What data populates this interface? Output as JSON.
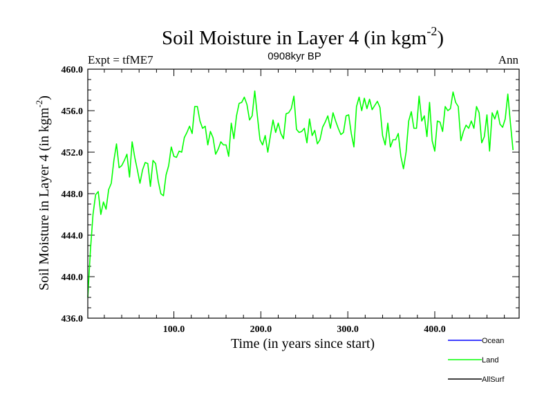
{
  "chart_data": {
    "type": "line",
    "title": "Soil Moisture in Layer 4 (in kgm",
    "title_sup": "-2",
    "title_close": ")",
    "subtitle": "0908kyr BP",
    "left_label": "Expt = tfME7",
    "right_label": "Ann",
    "xlabel": "Time (in years since start)",
    "ylabel": "Soil Moisture in Layer 4 (in kgm",
    "ylabel_sup": "-2",
    "ylabel_close": ")",
    "xlim": [
      1,
      497
    ],
    "ylim": [
      436,
      460
    ],
    "x_ticks": [
      100,
      200,
      300,
      400
    ],
    "x_tick_labels": [
      "100.0",
      "200.0",
      "300.0",
      "400.0"
    ],
    "y_ticks": [
      436,
      440,
      444,
      448,
      452,
      456,
      460
    ],
    "y_tick_labels": [
      "436.0",
      "440.0",
      "444.0",
      "448.0",
      "452.0",
      "456.0",
      "460.0"
    ],
    "series": [
      {
        "name": "Ocean",
        "color": "#0000ff",
        "x": [],
        "y": []
      },
      {
        "name": "Land",
        "color": "#00ff00",
        "x_start": 1,
        "x_step": 3,
        "y": [
          438.0,
          442.5,
          446.0,
          447.9,
          448.2,
          446.0,
          447.2,
          446.5,
          448.4,
          449.0,
          451.2,
          452.8,
          450.5,
          450.7,
          451.2,
          451.8,
          449.6,
          453.0,
          451.5,
          450.3,
          449.0,
          450.3,
          451.0,
          450.9,
          448.7,
          451.2,
          450.9,
          449.2,
          448.0,
          447.8,
          449.8,
          450.7,
          452.5,
          451.6,
          451.5,
          452.1,
          452.0,
          453.4,
          453.9,
          454.5,
          453.8,
          456.4,
          456.4,
          455.0,
          454.3,
          454.5,
          452.7,
          454.0,
          453.4,
          451.8,
          452.3,
          453.0,
          452.7,
          452.7,
          451.6,
          454.8,
          453.3,
          455.5,
          456.7,
          456.8,
          457.3,
          456.6,
          455.1,
          455.5,
          457.9,
          455.5,
          453.2,
          452.7,
          453.6,
          452.0,
          453.6,
          455.1,
          453.9,
          454.8,
          453.8,
          453.3,
          455.7,
          455.8,
          456.2,
          457.4,
          454.2,
          453.9,
          454.0,
          454.3,
          452.9,
          455.2,
          453.6,
          454.1,
          452.8,
          453.2,
          454.4,
          454.9,
          455.5,
          454.3,
          455.8,
          455.0,
          454.3,
          453.7,
          453.9,
          455.5,
          455.6,
          453.8,
          452.5,
          456.4,
          457.3,
          456.0,
          457.2,
          456.2,
          457.1,
          456.1,
          456.5,
          456.9,
          456.3,
          453.6,
          452.7,
          454.8,
          452.5,
          453.2,
          453.2,
          453.8,
          451.6,
          450.4,
          452.0,
          455.0,
          455.9,
          454.3,
          454.3,
          457.4,
          455.0,
          455.5,
          453.5,
          456.8,
          453.1,
          452.1,
          455.0,
          454.9,
          454.0,
          456.4,
          456.0,
          456.2,
          457.8,
          456.8,
          456.4,
          453.1,
          454.0,
          454.6,
          454.3,
          455.0,
          454.3,
          456.4,
          455.8,
          452.9,
          453.5,
          455.6,
          452.1,
          455.8,
          455.2,
          456.0,
          454.7,
          454.4,
          455.2,
          457.6,
          454.8,
          452.2
        ]
      },
      {
        "name": "AllSurf",
        "color": "#000000",
        "x": [],
        "y": []
      }
    ]
  }
}
